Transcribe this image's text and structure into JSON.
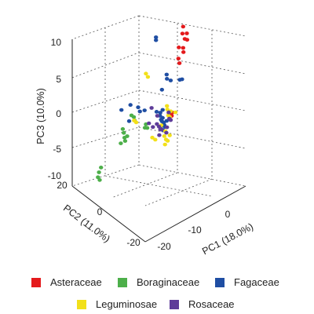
{
  "chart_data": {
    "type": "scatter",
    "title": "",
    "xlabel": "PC1 (18.0%)",
    "ylabel": "PC2 (11.0%)",
    "zlabel": "PC3 (10.0%)",
    "xlim": [
      -22,
      8
    ],
    "ylim": [
      -22,
      22
    ],
    "zlim": [
      -10,
      10
    ],
    "x_ticks": [
      -20,
      -10,
      0
    ],
    "y_ticks": [
      -20,
      0,
      20
    ],
    "z_ticks": [
      -10,
      -5,
      0,
      5,
      10
    ],
    "grid": true,
    "legend_position": "bottom",
    "series": [
      {
        "name": "Asteraceae",
        "color": "#e41a1c",
        "points": [
          [
            2.2,
            4,
            8.7
          ],
          [
            2.0,
            4,
            7.8
          ],
          [
            3.3,
            4,
            7.5
          ],
          [
            2.7,
            4,
            6.9
          ],
          [
            3.4,
            4,
            6.6
          ],
          [
            0.9,
            4,
            6.2
          ],
          [
            2.2,
            4,
            5.8
          ],
          [
            2.3,
            4,
            5.2
          ],
          [
            0.8,
            4,
            4.7
          ],
          [
            1.1,
            4,
            4.0
          ],
          [
            -3.0,
            0,
            -1.0
          ],
          [
            -4.0,
            0,
            -0.9
          ],
          [
            -3.2,
            0,
            -1.4
          ],
          [
            -3.6,
            0,
            -1.8
          ]
        ]
      },
      {
        "name": "Boraginaceae",
        "color": "#4daf4a",
        "points": [
          [
            -17.8,
            0,
            0.5
          ],
          [
            -17.5,
            0,
            -0.1
          ],
          [
            -17.3,
            0,
            -0.8
          ],
          [
            -17.1,
            0,
            -1.3
          ],
          [
            -16.5,
            0,
            -0.8
          ],
          [
            -18.4,
            0,
            -1.3
          ],
          [
            -15.2,
            0,
            1.7
          ],
          [
            -14.5,
            0,
            1.3
          ],
          [
            -14.3,
            0,
            0.8
          ],
          [
            -10.9,
            0,
            -0.6
          ],
          [
            -10.5,
            0,
            -1.2
          ],
          [
            -11.2,
            0,
            -1.0
          ],
          [
            -24.3,
            0,
            -3.1
          ],
          [
            -24.9,
            0,
            -3.6
          ],
          [
            -25.2,
            0,
            -4.2
          ],
          [
            -24.7,
            0,
            -4.7
          ]
        ]
      },
      {
        "name": "Fagaceae",
        "color": "#1f4ea3",
        "points": [
          [
            -7.9,
            0,
            10.5
          ],
          [
            -7.9,
            0,
            10.1
          ],
          [
            -6.1,
            0,
            2.9
          ],
          [
            -5.9,
            0,
            0.1
          ],
          [
            -6.6,
            0,
            -0.1
          ],
          [
            -7.7,
            0,
            0.3
          ],
          [
            -6.7,
            0,
            -0.5
          ],
          [
            -5.9,
            0,
            -1.0
          ],
          [
            -6.1,
            0,
            -1.4
          ],
          [
            -5.6,
            0,
            -1.7
          ],
          [
            -5.4,
            0,
            -2.1
          ],
          [
            -5.2,
            0,
            -2.4
          ],
          [
            -6.2,
            0,
            -2.0
          ],
          [
            -5.8,
            0,
            -2.7
          ],
          [
            -4.7,
            0,
            -1.7
          ],
          [
            -6.4,
            0,
            -1.1
          ],
          [
            -13.2,
            0,
            2.3
          ],
          [
            -15.5,
            0,
            3.2
          ],
          [
            -18.2,
            0,
            3.2
          ],
          [
            -15.9,
            0,
            1.1
          ],
          [
            -11.3,
            0,
            1.4
          ],
          [
            -4.7,
            0,
            4.6
          ],
          [
            -4.6,
            0,
            4.0
          ],
          [
            -3.5,
            0,
            3.5
          ],
          [
            -0.8,
            0,
            2.9
          ],
          [
            -0.1,
            0,
            2.8
          ],
          [
            -12.7,
            0,
            1.6
          ]
        ]
      },
      {
        "name": "Leguminosae",
        "color": "#f2e01a",
        "points": [
          [
            -10.9,
            0,
            6.3
          ],
          [
            -10.3,
            0,
            5.7
          ],
          [
            -14.4,
            0,
            0.8
          ],
          [
            -13.8,
            0,
            0.4
          ],
          [
            -4.6,
            0,
            0.3
          ],
          [
            -4.5,
            0,
            -0.2
          ],
          [
            -4.2,
            0,
            -1.1
          ],
          [
            -3.8,
            0,
            -1.4
          ],
          [
            -5.1,
            0,
            -3.0
          ],
          [
            -5.4,
            0,
            -3.6
          ],
          [
            -4.9,
            0,
            -4.2
          ],
          [
            -5.2,
            0,
            -4.8
          ],
          [
            -3.8,
            0,
            -3.9
          ],
          [
            -4.4,
            0,
            -4.5
          ],
          [
            -9.0,
            0,
            -2.9
          ],
          [
            -8.1,
            0,
            -3.4
          ],
          [
            -3.5,
            0,
            -0.7
          ],
          [
            -2.1,
            0,
            -1.2
          ],
          [
            -6.3,
            0,
            -1.9
          ]
        ]
      },
      {
        "name": "Rosaceae",
        "color": "#5e3c99",
        "points": [
          [
            -9.2,
            0,
            1.2
          ],
          [
            -10.0,
            0,
            -0.7
          ],
          [
            -8.8,
            0,
            -1.5
          ],
          [
            -7.6,
            0,
            -1.4
          ],
          [
            -7.5,
            0,
            -0.3
          ],
          [
            -7.0,
            0,
            -1.9
          ],
          [
            -6.6,
            0,
            -2.4
          ],
          [
            -6.2,
            0,
            -2.5
          ],
          [
            -6.9,
            0,
            -3.1
          ],
          [
            -4.1,
            0,
            -0.7
          ],
          [
            -3.9,
            0,
            -1.6
          ],
          [
            -3.5,
            0,
            -1.9
          ],
          [
            -4.6,
            0,
            -2.6
          ],
          [
            -4.8,
            0,
            -3.3
          ]
        ]
      }
    ]
  }
}
